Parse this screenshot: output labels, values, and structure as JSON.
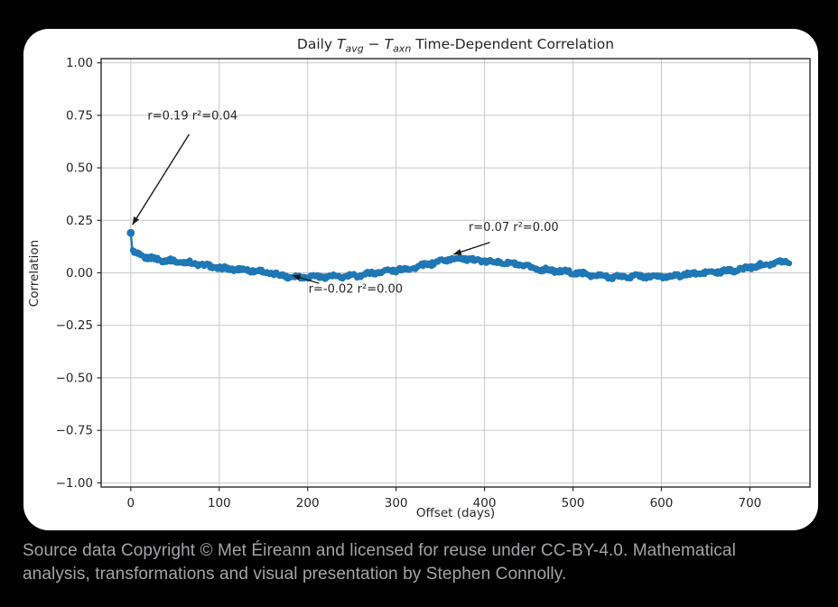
{
  "page": {
    "background": "#000000"
  },
  "card": {
    "background": "#ffffff"
  },
  "chart_data": {
    "type": "scatter",
    "title": {
      "prefix": "Daily ",
      "var1": "T",
      "sub1": "avg",
      "separator": " − ",
      "var2": "T",
      "sub2": "axn",
      "suffix": " Time-Dependent Correlation"
    },
    "xlabel": "Offset (days)",
    "ylabel": "Correlation",
    "xlim": [
      -33.5,
      768
    ],
    "ylim": [
      -1.02,
      1.02
    ],
    "xticks": [
      0,
      100,
      200,
      300,
      400,
      500,
      600,
      700
    ],
    "yticks": [
      1.0,
      0.75,
      0.5,
      0.25,
      0.0,
      -0.25,
      -0.5,
      -0.75,
      -1.0
    ],
    "grid": true,
    "grid_color": "#c8c8c8",
    "spine_color": "#2b2b2b",
    "line_color": "#1f77b4",
    "annotation_color": "#2e2e2e",
    "first_point": [
      0,
      0.19
    ],
    "noise_halfwidth": 0.008,
    "series_keypoints": [
      [
        2,
        0.098
      ],
      [
        5,
        0.092
      ],
      [
        10,
        0.082
      ],
      [
        20,
        0.073
      ],
      [
        35,
        0.065
      ],
      [
        50,
        0.054
      ],
      [
        75,
        0.04
      ],
      [
        100,
        0.026
      ],
      [
        125,
        0.014
      ],
      [
        150,
        0.003
      ],
      [
        170,
        -0.009
      ],
      [
        190,
        -0.019
      ],
      [
        215,
        -0.021
      ],
      [
        240,
        -0.016
      ],
      [
        265,
        -0.007
      ],
      [
        290,
        0.006
      ],
      [
        315,
        0.024
      ],
      [
        340,
        0.044
      ],
      [
        360,
        0.062
      ],
      [
        375,
        0.07
      ],
      [
        395,
        0.061
      ],
      [
        420,
        0.047
      ],
      [
        450,
        0.028
      ],
      [
        475,
        0.013
      ],
      [
        500,
        -0.002
      ],
      [
        530,
        -0.013
      ],
      [
        560,
        -0.02
      ],
      [
        590,
        -0.018
      ],
      [
        620,
        -0.011
      ],
      [
        650,
        -0.003
      ],
      [
        680,
        0.014
      ],
      [
        705,
        0.028
      ],
      [
        725,
        0.044
      ],
      [
        740,
        0.055
      ],
      [
        745,
        0.06
      ]
    ],
    "annotations": [
      {
        "text": "r=0.19 r²=0.04",
        "text_xy": [
          19,
          0.73
        ],
        "arrow_start": [
          66,
          0.66
        ],
        "arrow_tip": [
          2,
          0.23
        ]
      },
      {
        "text": "r=-0.02 r²=0.00",
        "text_xy": [
          201,
          -0.095
        ],
        "arrow_start": [
          213,
          -0.05
        ],
        "arrow_tip": [
          183,
          -0.012
        ]
      },
      {
        "text": "r=0.07 r²=0.00",
        "text_xy": [
          382,
          0.2
        ],
        "arrow_start": [
          406,
          0.145
        ],
        "arrow_tip": [
          365,
          0.088
        ]
      }
    ]
  },
  "caption": {
    "line1": "Source data Copyright © Met Éireann and licensed for reuse under CC-BY-4.0. Mathematical",
    "line2": "analysis, transformations and visual presentation by Stephen Connolly."
  }
}
